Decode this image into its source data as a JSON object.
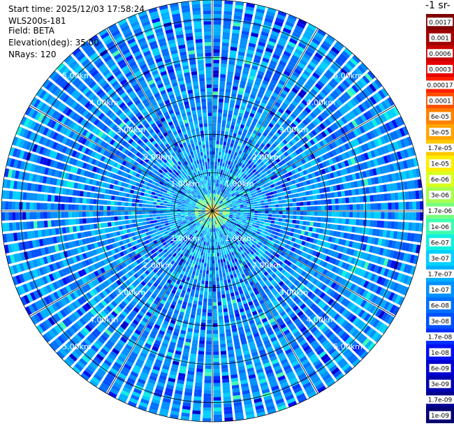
{
  "header": {
    "start_time": "Start time: 2025/12/03 17:58:24",
    "instrument": "WLS200s-181",
    "field": "Field: BETA",
    "elevation": "Elevation(deg): 35.00",
    "nrays": "NRays: 120",
    "unit": "-1 sr-"
  },
  "chart_data": {
    "type": "heatmap",
    "projection": "polar",
    "field": "BETA",
    "elevation_deg": 35.0,
    "n_rays": 120,
    "max_range_km": 5.5,
    "range_ring_labels": [
      "1.00km",
      "2.00km",
      "3.00km",
      "4.00km",
      "5.00km"
    ],
    "range_ring_values_km": [
      1,
      2,
      3,
      4,
      5
    ],
    "colorbar": {
      "scale": "log",
      "labels": [
        "0.0017",
        "0.001",
        "0.0006",
        "0.0003",
        "0.00017",
        "0.0001",
        "6e-05",
        "3e-05",
        "1.7e-05",
        "1e-05",
        "6e-06",
        "3e-06",
        "1.7e-06",
        "1e-06",
        "6e-07",
        "3e-07",
        "1.7e-07",
        "1e-07",
        "6e-08",
        "3e-08",
        "1.7e-08",
        "1e-08",
        "6e-09",
        "3e-09",
        "1.7e-09",
        "1e-09"
      ],
      "colors": [
        "#800000",
        "#a00000",
        "#c80000",
        "#e60000",
        "#ff2000",
        "#ff5000",
        "#ff8000",
        "#ffa500",
        "#ffc800",
        "#ffee00",
        "#d8ff20",
        "#a8ff50",
        "#78ff80",
        "#40ffb0",
        "#10f0e0",
        "#00d0ff",
        "#00b0ff",
        "#0090ff",
        "#0070ff",
        "#0050ff",
        "#0030ff",
        "#0010f0",
        "#0000d0",
        "#0000b0",
        "#000090",
        "#000070"
      ]
    },
    "dominant_background": "1e-07 to 3e-07",
    "peak_near_center": "1.7e-05 to 3e-05",
    "grid": true
  }
}
